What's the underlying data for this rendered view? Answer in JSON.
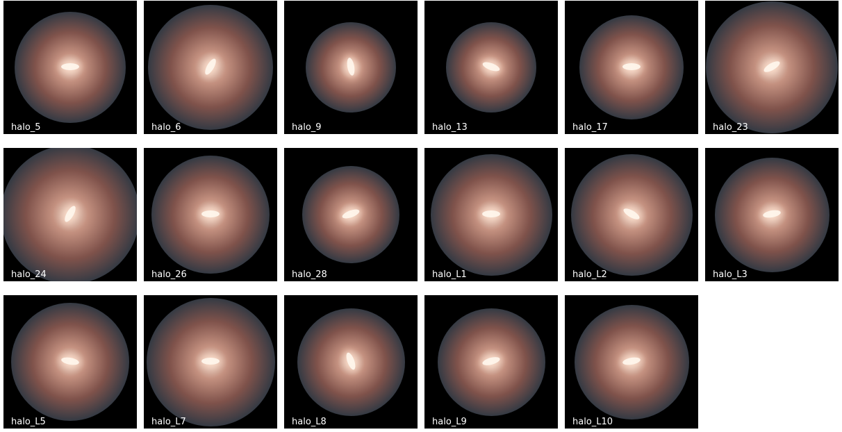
{
  "panels": [
    "halo_5",
    "halo_6",
    "halo_9",
    "halo_13",
    "halo_17",
    "halo_23",
    "halo_24",
    "halo_26",
    "halo_28",
    "halo_L1",
    "halo_L2",
    "halo_L3",
    "halo_L5",
    "halo_L7",
    "halo_L8",
    "halo_L9",
    "halo_L10"
  ]
}
